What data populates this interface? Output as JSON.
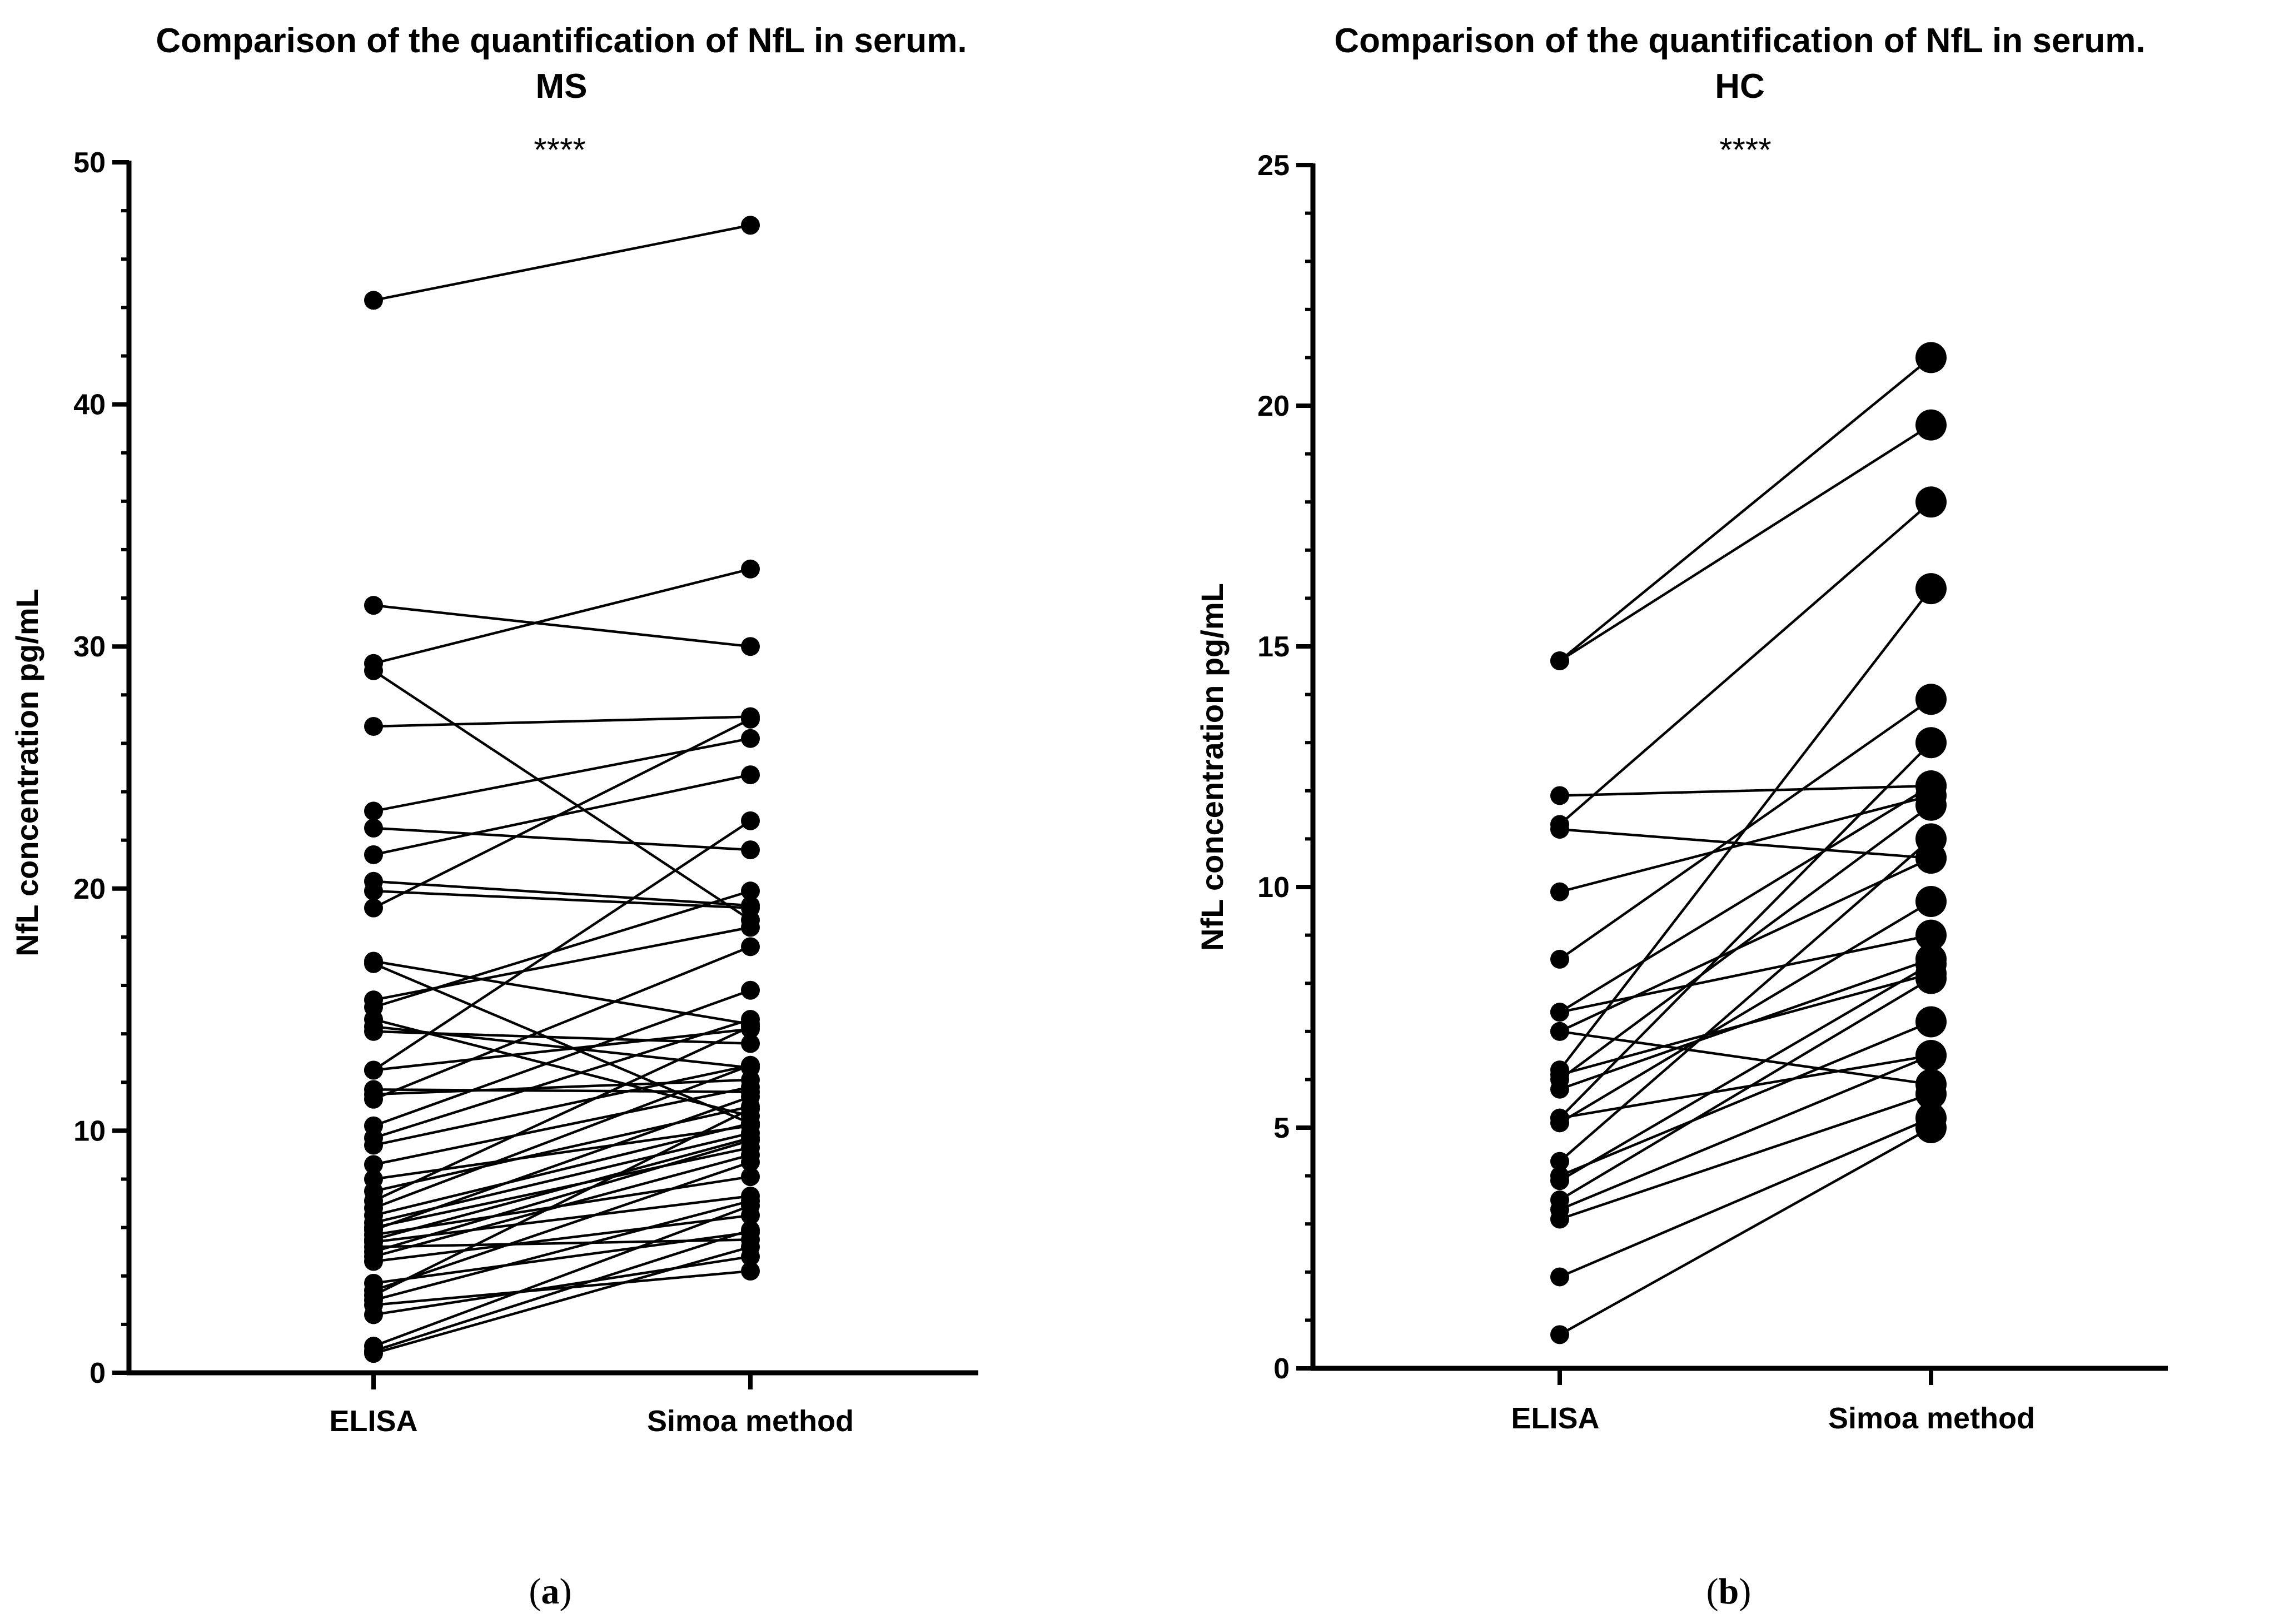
{
  "chart_data": [
    {
      "type": "paired-dot",
      "panel_label": "a",
      "title": "Comparison of the quantification of NfL in serum.",
      "subtitle": "MS",
      "significance": "****",
      "xlabel": "",
      "ylabel": "NfL concentration pg/mL",
      "categories": [
        "ELISA",
        "Simoa method"
      ],
      "ylim": [
        0,
        50
      ],
      "yticks": [
        0,
        10,
        20,
        30,
        40,
        50
      ],
      "minor_per_major": 5,
      "marker": "small",
      "pairs": [
        [
          44.3,
          47.4
        ],
        [
          31.7,
          30.0
        ],
        [
          29.3,
          33.2
        ],
        [
          29.0,
          18.7
        ],
        [
          26.7,
          27.1
        ],
        [
          23.2,
          26.2
        ],
        [
          22.5,
          21.6
        ],
        [
          21.4,
          24.7
        ],
        [
          20.3,
          19.3
        ],
        [
          19.9,
          19.2
        ],
        [
          19.2,
          27.0
        ],
        [
          17.0,
          14.4
        ],
        [
          16.9,
          10.3
        ],
        [
          15.4,
          18.4
        ],
        [
          15.1,
          19.9
        ],
        [
          14.6,
          10.6
        ],
        [
          14.3,
          12.6
        ],
        [
          14.1,
          13.6
        ],
        [
          12.5,
          22.8
        ],
        [
          12.5,
          14.2
        ],
        [
          11.7,
          11.6
        ],
        [
          11.5,
          12.1
        ],
        [
          11.3,
          17.6
        ],
        [
          10.2,
          15.8
        ],
        [
          9.7,
          14.6
        ],
        [
          9.4,
          12.7
        ],
        [
          8.6,
          11.8
        ],
        [
          8.0,
          10.2
        ],
        [
          7.5,
          11.0
        ],
        [
          7.1,
          14.3
        ],
        [
          6.8,
          12.7
        ],
        [
          6.5,
          10.3
        ],
        [
          6.2,
          9.9
        ],
        [
          6.0,
          9.3
        ],
        [
          5.9,
          11.4
        ],
        [
          5.7,
          8.1
        ],
        [
          5.5,
          9.7
        ],
        [
          5.4,
          7.3
        ],
        [
          5.2,
          5.5
        ],
        [
          5.0,
          9.6
        ],
        [
          4.8,
          9.0
        ],
        [
          4.6,
          6.5
        ],
        [
          3.7,
          5.8
        ],
        [
          3.4,
          8.7
        ],
        [
          3.2,
          10.9
        ],
        [
          3.0,
          7.1
        ],
        [
          2.8,
          4.2
        ],
        [
          2.4,
          4.8
        ],
        [
          1.1,
          6.9
        ],
        [
          0.9,
          5.9
        ],
        [
          0.8,
          5.2
        ]
      ]
    },
    {
      "type": "paired-dot",
      "panel_label": "b",
      "title": "Comparison of the quantification of NfL in serum.",
      "subtitle": "HC",
      "significance": "****",
      "xlabel": "",
      "ylabel": "NfL concentration pg/mL",
      "categories": [
        "ELISA",
        "Simoa method"
      ],
      "ylim": [
        0,
        25
      ],
      "yticks": [
        0,
        5,
        10,
        15,
        20,
        25
      ],
      "minor_per_major": 5,
      "marker": "large",
      "pairs": [
        [
          14.7,
          21.0
        ],
        [
          14.7,
          19.6
        ],
        [
          11.9,
          12.1
        ],
        [
          11.3,
          18.0
        ],
        [
          11.2,
          10.6
        ],
        [
          9.9,
          11.9
        ],
        [
          8.5,
          13.9
        ],
        [
          7.4,
          12.1
        ],
        [
          7.4,
          9.0
        ],
        [
          7.0,
          10.6
        ],
        [
          7.0,
          5.9
        ],
        [
          6.2,
          16.2
        ],
        [
          6.1,
          8.2
        ],
        [
          6.0,
          11.7
        ],
        [
          5.8,
          8.5
        ],
        [
          5.2,
          13.0
        ],
        [
          5.1,
          9.7
        ],
        [
          4.3,
          11.0
        ],
        [
          4.0,
          7.2
        ],
        [
          3.9,
          8.4
        ],
        [
          3.5,
          8.1
        ],
        [
          3.3,
          6.5
        ],
        [
          3.1,
          5.7
        ],
        [
          1.9,
          5.2
        ],
        [
          0.7,
          5.0
        ],
        [
          5.2,
          6.5
        ]
      ]
    }
  ]
}
